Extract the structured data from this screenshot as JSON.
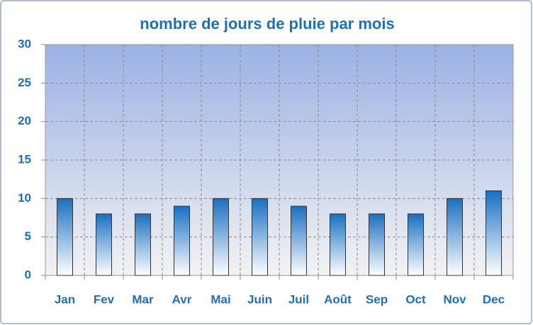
{
  "chart_data": {
    "type": "bar",
    "title": "nombre de jours de pluie par mois",
    "categories": [
      "Jan",
      "Fev",
      "Mar",
      "Avr",
      "Mai",
      "Juin",
      "Juil",
      "Août",
      "Sep",
      "Oct",
      "Nov",
      "Dec"
    ],
    "values": [
      10,
      8,
      8,
      9,
      10,
      10,
      9,
      8,
      8,
      8,
      10,
      11
    ],
    "color": "#1a6fc0",
    "ylim": [
      0,
      30
    ],
    "yticks": [
      0,
      5,
      10,
      15,
      20,
      25,
      30
    ],
    "grid": true
  }
}
